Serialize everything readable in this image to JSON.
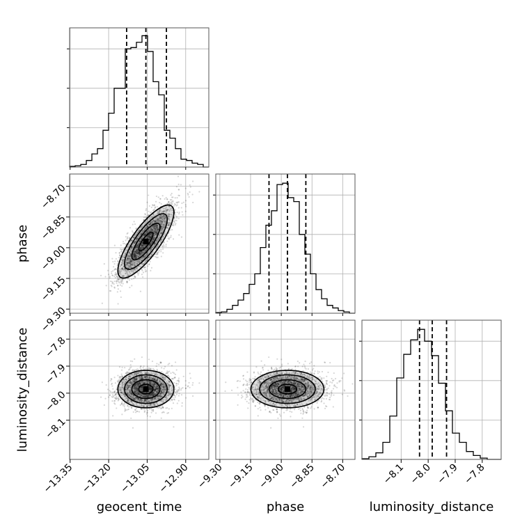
{
  "chart_data": {
    "type": "corner",
    "parameters": [
      "geocent_time",
      "phase",
      "luminosity_distance"
    ],
    "ranges": {
      "geocent_time": [
        -13.352,
        -12.81
      ],
      "phase": [
        -9.32,
        -8.64
      ],
      "luminosity_distance": [
        -8.245,
        -7.73
      ]
    },
    "ticks": {
      "geocent_time": {
        "values": [
          -13.35,
          -13.2,
          -13.05,
          -12.9
        ],
        "labels": [
          "−13.35",
          "−13.20",
          "−13.05",
          "−12.90"
        ]
      },
      "phase": {
        "values": [
          -9.3,
          -9.15,
          -9.0,
          -8.85,
          -8.7
        ],
        "labels": [
          "−9.30",
          "−9.15",
          "−9.00",
          "−8.85",
          "−8.70"
        ]
      },
      "luminosity_distance": {
        "values": [
          -8.1,
          -8.0,
          -7.9,
          -7.8
        ],
        "labels": [
          "−8.1",
          "−8.0",
          "−7.9",
          "−7.8"
        ]
      }
    },
    "quantiles": {
      "geocent_time": [
        -13.13,
        -13.055,
        -12.975
      ],
      "phase": [
        -9.06,
        -8.97,
        -8.88
      ],
      "luminosity_distance": [
        -8.032,
        -7.985,
        -7.932
      ]
    },
    "histograms": {
      "geocent_time": [
        0.005,
        0.01,
        0.02,
        0.05,
        0.1,
        0.14,
        0.28,
        0.41,
        0.6,
        0.6,
        0.9,
        0.91,
        0.95,
        1.0,
        0.88,
        0.65,
        0.55,
        0.28,
        0.22,
        0.14,
        0.06,
        0.05,
        0.03,
        0.02,
        0.0
      ],
      "phase": [
        0.005,
        0.01,
        0.03,
        0.06,
        0.1,
        0.15,
        0.22,
        0.3,
        0.5,
        0.67,
        0.78,
        0.98,
        0.99,
        0.88,
        0.85,
        0.6,
        0.45,
        0.3,
        0.18,
        0.11,
        0.06,
        0.04,
        0.02,
        0.01,
        0.0
      ],
      "luminosity_distance": [
        0.005,
        0.02,
        0.05,
        0.13,
        0.33,
        0.62,
        0.8,
        0.91,
        0.99,
        0.9,
        0.79,
        0.58,
        0.37,
        0.2,
        0.13,
        0.06,
        0.03,
        0.01,
        0.0,
        0.0
      ]
    },
    "hist_ylim": [
      0,
      1.06
    ],
    "samples": {
      "count": 2400,
      "mean": {
        "geocent_time": -13.055,
        "phase": -8.97,
        "luminosity_distance": -7.985
      },
      "std": {
        "geocent_time": 0.055,
        "phase": 0.09,
        "luminosity_distance": 0.035
      },
      "correlation": {
        "geocent_time__phase": 0.8,
        "geocent_time__luminosity_distance": 0.0,
        "phase__luminosity_distance": 0.0
      }
    },
    "contour_levels": [
      0.12,
      0.39,
      0.68,
      0.86
    ],
    "colors": {
      "hist_line": "#000000",
      "quantile_line": "#000000",
      "grid": "#b0b0b0",
      "samples": "#000000"
    },
    "grid": true,
    "axis_labels": {
      "geocent_time": "geocent_time",
      "phase": "phase",
      "luminosity_distance": "luminosity_distance"
    }
  }
}
